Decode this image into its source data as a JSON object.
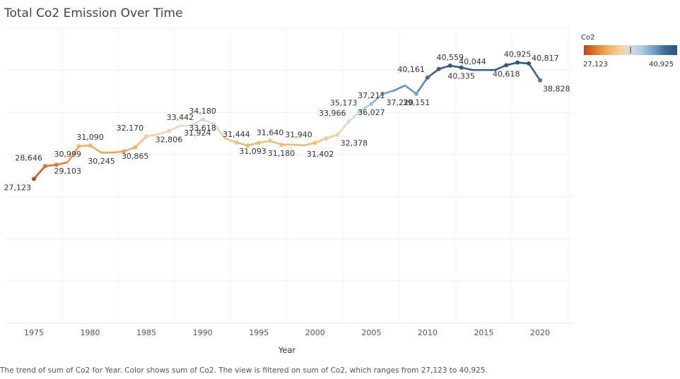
{
  "chart_data": {
    "type": "line",
    "title": "Total Co2 Emission Over Time",
    "xlabel": "Year",
    "ylabel": "",
    "x_ticks": [
      1975,
      1980,
      1985,
      1990,
      1995,
      2000,
      2005,
      2010,
      2015,
      2020
    ],
    "ylim": [
      10000,
      45000
    ],
    "grid": true,
    "series": [
      {
        "x": [
          1975,
          1976,
          1977,
          1978,
          1979,
          1980,
          1981,
          1982,
          1983,
          1984,
          1985,
          1986,
          1987,
          1988,
          1989,
          1990,
          1991,
          1992,
          1993,
          1994,
          1995,
          1996,
          1997,
          1998,
          1999,
          2000,
          2001,
          2002,
          2003,
          2004,
          2005,
          2006,
          2007,
          2008,
          2009,
          2010,
          2011,
          2012,
          2013,
          2014,
          2015,
          2016,
          2017,
          2018,
          2019,
          2020
        ],
        "values": [
          27123,
          28646,
          28800,
          29103,
          30999,
          31090,
          30245,
          30245,
          30400,
          30865,
          32170,
          32400,
          32806,
          33442,
          33450,
          34180,
          33618,
          31924,
          31444,
          31093,
          31400,
          31640,
          31180,
          31200,
          31100,
          31402,
          31940,
          32378,
          33966,
          35173,
          36027,
          37211,
          37600,
          38200,
          37220,
          39151,
          40161,
          40559,
          40335,
          40044,
          40050,
          40044,
          40618,
          40925,
          40817,
          38828
        ],
        "point_markers": [
          true,
          true,
          true,
          false,
          true,
          true,
          false,
          false,
          true,
          true,
          true,
          false,
          true,
          false,
          false,
          true,
          true,
          false,
          true,
          true,
          true,
          true,
          true,
          false,
          false,
          true,
          true,
          true,
          true,
          true,
          true,
          true,
          false,
          false,
          true,
          true,
          true,
          true,
          true,
          false,
          false,
          false,
          true,
          true,
          true,
          true
        ]
      }
    ],
    "data_labels": [
      {
        "x": 1975,
        "text": "27,123",
        "pos": "below-left"
      },
      {
        "x": 1976,
        "text": "28,646",
        "pos": "above-left"
      },
      {
        "x": 1978,
        "text": "30,999",
        "pos": "above"
      },
      {
        "x": 1978,
        "text": "29,103",
        "pos": "below"
      },
      {
        "x": 1980,
        "text": "31,090",
        "pos": "above"
      },
      {
        "x": 1981,
        "text": "30,245",
        "pos": "below"
      },
      {
        "x": 1984,
        "text": "30,865",
        "pos": "below"
      },
      {
        "x": 1985,
        "text": "32,170",
        "pos": "above-left"
      },
      {
        "x": 1987,
        "text": "32,806",
        "pos": "below"
      },
      {
        "x": 1988,
        "text": "33,442",
        "pos": "above"
      },
      {
        "x": 1990,
        "text": "34,180",
        "pos": "above"
      },
      {
        "x": 1990,
        "text": "33,618",
        "pos": "below"
      },
      {
        "x": 1991,
        "text": "31,924",
        "pos": "below-left"
      },
      {
        "x": 1993,
        "text": "31,444",
        "pos": "above"
      },
      {
        "x": 1993,
        "text": "31,093",
        "pos": "below-right"
      },
      {
        "x": 1996,
        "text": "31,640",
        "pos": "above"
      },
      {
        "x": 1997,
        "text": "31,180",
        "pos": "below"
      },
      {
        "x": 1999,
        "text": "31,402",
        "pos": "below-right"
      },
      {
        "x": 2000,
        "text": "31,940",
        "pos": "above-left"
      },
      {
        "x": 2002,
        "text": "32,378",
        "pos": "below-right"
      },
      {
        "x": 2003,
        "text": "33,966",
        "pos": "above-left"
      },
      {
        "x": 2004,
        "text": "35,173",
        "pos": "above-left"
      },
      {
        "x": 2005,
        "text": "36,027",
        "pos": "below"
      },
      {
        "x": 2005,
        "text": "37,211",
        "pos": "above"
      },
      {
        "x": 2009,
        "text": "37,220",
        "pos": "below-left"
      },
      {
        "x": 2009,
        "text": "39,151",
        "pos": "below"
      },
      {
        "x": 2010,
        "text": "40,161",
        "pos": "above-left"
      },
      {
        "x": 2012,
        "text": "40,559",
        "pos": "above"
      },
      {
        "x": 2013,
        "text": "40,335",
        "pos": "below"
      },
      {
        "x": 2014,
        "text": "40,044",
        "pos": "above"
      },
      {
        "x": 2017,
        "text": "40,618",
        "pos": "below"
      },
      {
        "x": 2018,
        "text": "40,925",
        "pos": "above"
      },
      {
        "x": 2019,
        "text": "40,817",
        "pos": "right"
      },
      {
        "x": 2020,
        "text": "38,828",
        "pos": "below-right"
      }
    ],
    "color_legend": {
      "title": "Co2",
      "min_label": "27,123",
      "max_label": "40,925",
      "colors": [
        "#b9451f",
        "#e27a2e",
        "#f3ab5a",
        "#f6cf9a",
        "#dcdcdc",
        "#a9cbe3",
        "#6f9fc8",
        "#3c6a99",
        "#2b5785"
      ]
    },
    "legend_placement": "top-right"
  },
  "caption": "The trend of sum of Co2 for Year.  Color shows sum of Co2. The view is filtered on sum of Co2, which ranges from 27,123 to 40,925."
}
